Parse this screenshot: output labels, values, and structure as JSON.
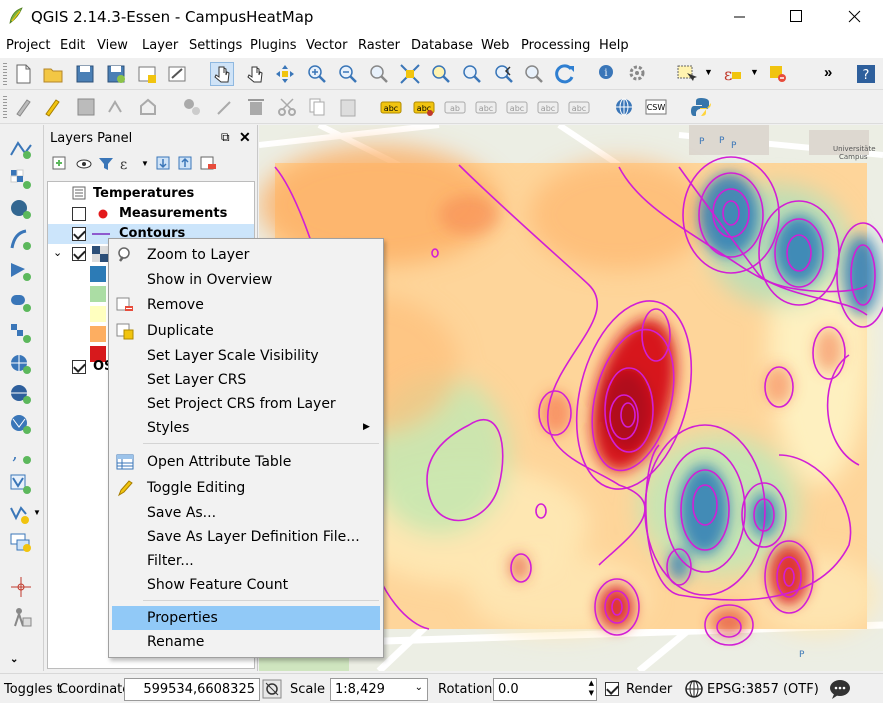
{
  "window": {
    "title": "QGIS 2.14.3-Essen - CampusHeatMap"
  },
  "menubar": [
    "Project",
    "Edit",
    "View",
    "Layer",
    "Settings",
    "Plugins",
    "Vector",
    "Raster",
    "Database",
    "Web",
    "Processing",
    "Help"
  ],
  "toolbar": {
    "more_glyph": "»"
  },
  "layers_panel": {
    "title": "Layers Panel",
    "layers": [
      {
        "name": "Temperatures",
        "checked": null
      },
      {
        "name": "Measurements",
        "checked": false
      },
      {
        "name": "Contours",
        "checked": true
      },
      {
        "name": "",
        "checked": true
      },
      {
        "name": "OS",
        "checked": true
      }
    ],
    "legend_colors": [
      "#2c7bb6",
      "#abdda4",
      "#ffffbf",
      "#fdae61",
      "#d7191c"
    ]
  },
  "map": {
    "label": "Universitäte Campus"
  },
  "context_menu": {
    "items": [
      {
        "label": "Zoom to Layer",
        "icon": "zoom-layer-icon"
      },
      {
        "label": "Show in Overview",
        "icon": ""
      },
      {
        "label": "Remove",
        "icon": "remove-layer-icon"
      },
      {
        "label": "Duplicate",
        "icon": "duplicate-layer-icon"
      },
      {
        "label": "Set Layer Scale Visibility",
        "icon": ""
      },
      {
        "label": "Set Layer CRS",
        "icon": ""
      },
      {
        "label": "Set Project CRS from Layer",
        "icon": ""
      },
      {
        "label": "Styles",
        "icon": "",
        "submenu": true
      },
      {
        "label": "Open Attribute Table",
        "icon": "attribute-table-icon"
      },
      {
        "label": "Toggle Editing",
        "icon": "pencil-icon"
      },
      {
        "label": "Save As...",
        "icon": ""
      },
      {
        "label": "Save As Layer Definition File...",
        "icon": ""
      },
      {
        "label": "Filter...",
        "icon": ""
      },
      {
        "label": "Show Feature Count",
        "icon": ""
      },
      {
        "label": "Properties",
        "icon": "",
        "highlighted": true
      },
      {
        "label": "Rename",
        "icon": ""
      }
    ]
  },
  "statusbar": {
    "toggles_label": "Toggles t",
    "coordinate_label": "Coordinate",
    "coordinate_value": "599534,6608325",
    "scale_label": "Scale",
    "scale_value": "1:8,429",
    "rotation_label": "Rotation",
    "rotation_value": "0.0",
    "render_label": "Render",
    "render_checked": true,
    "crs_label": "EPSG:3857 (OTF)"
  }
}
